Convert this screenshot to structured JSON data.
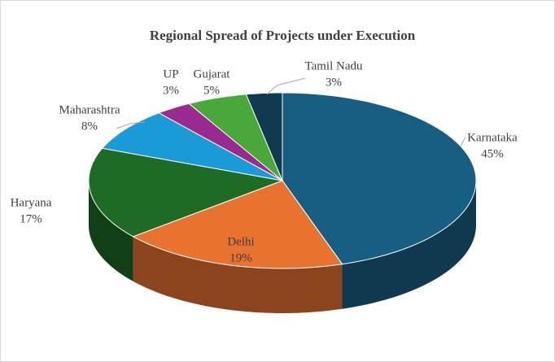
{
  "chart_data": {
    "type": "pie",
    "title": "Regional Spread of Projects under Execution",
    "categories": [
      "Karnataka",
      "Delhi",
      "Haryana",
      "Maharashtra",
      "UP",
      "Gujarat",
      "Tamil Nadu"
    ],
    "values": [
      45,
      19,
      17,
      8,
      3,
      5,
      3
    ],
    "value_labels": [
      "45%",
      "19%",
      "17%",
      "8%",
      "3%",
      "5%",
      "3%"
    ],
    "colors": [
      "#175f82",
      "#e87230",
      "#1d6b24",
      "#1a9bd7",
      "#9a2a8f",
      "#4aa83a",
      "#0f3a4f"
    ]
  }
}
